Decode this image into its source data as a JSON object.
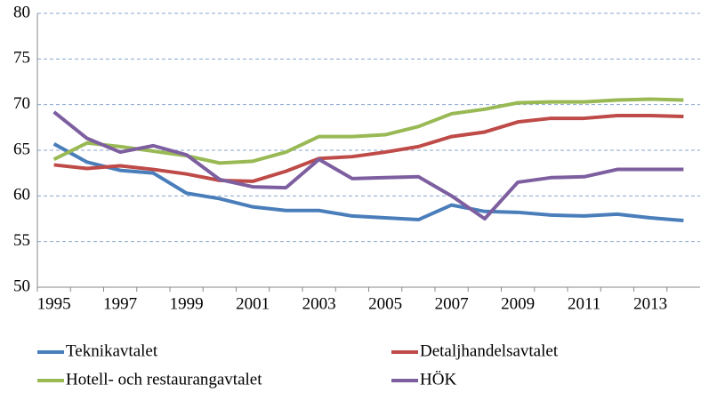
{
  "chart_data": {
    "type": "line",
    "categories": [
      "1995",
      null,
      "1997",
      null,
      "1999",
      null,
      "2001",
      null,
      "2003",
      null,
      "2005",
      null,
      "2007",
      null,
      "2009",
      null,
      "2011",
      null,
      "2013",
      null
    ],
    "ylim": [
      50,
      80
    ],
    "yticks": [
      50,
      55,
      60,
      65,
      70,
      75,
      80
    ],
    "grid": true,
    "series": [
      {
        "name": "Teknikavtalet",
        "color": "#4a7ebb",
        "values": [
          65.7,
          63.7,
          62.8,
          62.5,
          60.3,
          59.7,
          58.8,
          58.4,
          58.4,
          57.8,
          57.6,
          57.4,
          59.0,
          58.3,
          58.2,
          57.9,
          57.8,
          58.0,
          57.6,
          57.3
        ]
      },
      {
        "name": "Detaljhandelsavtalet",
        "color": "#be4b48",
        "values": [
          63.4,
          63.0,
          63.3,
          62.9,
          62.4,
          61.7,
          61.6,
          62.7,
          64.1,
          64.3,
          64.8,
          65.4,
          66.5,
          67.0,
          68.1,
          68.5,
          68.5,
          68.8,
          68.8,
          68.7
        ]
      },
      {
        "name": "Hotell- och restaurangavtalet",
        "color": "#98b954",
        "values": [
          64.0,
          65.8,
          65.4,
          64.9,
          64.4,
          63.6,
          63.8,
          64.8,
          66.5,
          66.5,
          66.7,
          67.6,
          69.0,
          69.5,
          70.2,
          70.3,
          70.3,
          70.5,
          70.6,
          70.5
        ]
      },
      {
        "name": "HÖK",
        "color": "#7d5fa0",
        "values": [
          69.2,
          66.3,
          64.8,
          65.5,
          64.5,
          61.8,
          61.0,
          60.9,
          64.0,
          61.9,
          62.0,
          62.1,
          60.0,
          57.5,
          61.5,
          62.0,
          62.1,
          62.9,
          62.9,
          62.9
        ]
      }
    ]
  }
}
